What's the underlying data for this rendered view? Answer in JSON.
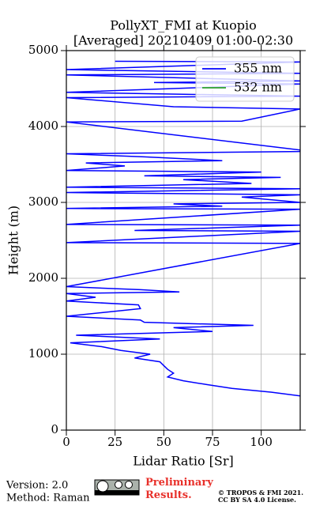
{
  "chart_data": {
    "type": "line",
    "title": "PollyXT_FMI at Kuopio",
    "subtitle": "[Averaged] 20210409 01:00-02:30",
    "x_label": "Lidar Ratio [Sr]",
    "y_label": "Height (m)",
    "xlim": [
      0,
      120
    ],
    "xticks": [
      0,
      25,
      50,
      75,
      100
    ],
    "ylim": [
      0,
      5000
    ],
    "yticks": [
      0,
      1000,
      2000,
      3000,
      4000,
      5000
    ],
    "grid": true,
    "legend": "upper right",
    "heights": [
      450,
      500,
      550,
      600,
      650,
      700,
      750,
      800,
      850,
      900,
      950,
      1000,
      1050,
      1100,
      1150,
      1200,
      1250,
      1300,
      1350,
      1380,
      1420,
      1450,
      1500,
      1600,
      1650,
      1700,
      1750,
      1800,
      1820,
      1850,
      1890,
      2460,
      2470,
      2620,
      2630,
      2700,
      2710,
      2910,
      2920,
      2950,
      2980,
      3000,
      3070,
      3100,
      3130,
      3180,
      3200,
      3250,
      3300,
      3330,
      3350,
      3400,
      3420,
      3480,
      3520,
      3550,
      3600,
      3640,
      3670,
      3690,
      4060,
      4070,
      4230,
      4260,
      4380,
      4400,
      4450,
      4560,
      4580,
      4600,
      4680,
      4700,
      4750,
      4850,
      4860
    ],
    "series": [
      {
        "name": "355 nm",
        "color": "#0000ff",
        "values": [
          120,
          105,
          85,
          72,
          60,
          52,
          55,
          52,
          50,
          48,
          35,
          43,
          28,
          18,
          2,
          48,
          5,
          75,
          55,
          96,
          40,
          38,
          0,
          38,
          37,
          0,
          15,
          0,
          58,
          38,
          0,
          120,
          0,
          120,
          35,
          120,
          0,
          120,
          0,
          80,
          55,
          120,
          90,
          120,
          0,
          120,
          0,
          95,
          60,
          110,
          40,
          100,
          0,
          30,
          10,
          80,
          40,
          0,
          120,
          120,
          0,
          90,
          120,
          55,
          0,
          120,
          0,
          120,
          45,
          120,
          0,
          120,
          0,
          120,
          25
        ]
      },
      {
        "name": "532 nm",
        "color": "#2ca02c",
        "values": [
          null,
          null,
          null,
          null,
          null,
          null,
          null,
          null,
          null,
          null,
          null,
          null,
          null,
          null,
          null,
          null,
          null,
          null,
          null,
          null,
          null,
          null,
          null,
          null,
          null,
          null,
          null,
          null,
          null,
          null,
          null,
          null,
          null,
          null,
          null,
          null,
          null,
          null,
          null,
          null,
          null,
          null,
          null,
          null,
          null,
          null,
          null,
          null,
          null,
          null,
          null,
          null,
          null,
          null,
          null,
          null,
          null,
          null,
          null,
          null,
          null,
          null,
          null,
          null,
          null,
          null,
          null,
          null,
          null,
          null,
          null,
          null,
          null,
          null,
          null
        ]
      }
    ],
    "footer": {
      "version": "Version: 2.0",
      "method": "Method: Raman",
      "status": "Preliminary Results.",
      "copyright": "© TROPOS & FMI 2021.",
      "license": "CC BY SA 4.0 License."
    }
  }
}
